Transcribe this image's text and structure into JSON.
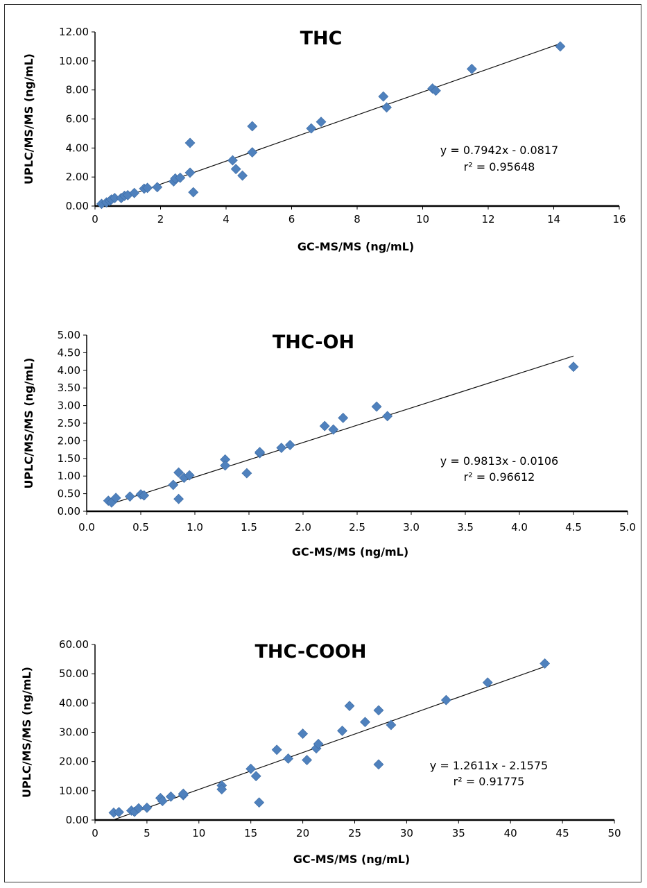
{
  "chart_data": [
    {
      "type": "scatter",
      "title": "THC",
      "xlabel": "GC-MS/MS (ng/mL)",
      "ylabel": "UPLC/MS/MS (ng/mL)",
      "xlim": [
        0,
        16
      ],
      "ylim": [
        0,
        12
      ],
      "x_ticks": [
        "0",
        "2",
        "4",
        "6",
        "8",
        "10",
        "12",
        "14",
        "16"
      ],
      "y_ticks": [
        "0.00",
        "2.00",
        "4.00",
        "6.00",
        "8.00",
        "10.00",
        "12.00"
      ],
      "equation": "y = 0.7942x - 0.0817",
      "r2": "r² = 0.95648",
      "trendline": {
        "slope": 0.7942,
        "intercept": -0.0817,
        "x_range": [
          0.1,
          14.2
        ]
      },
      "marker_color": "#4F81BD",
      "points": [
        [
          0.2,
          0.15
        ],
        [
          0.35,
          0.25
        ],
        [
          0.45,
          0.35
        ],
        [
          0.5,
          0.45
        ],
        [
          0.6,
          0.55
        ],
        [
          0.8,
          0.55
        ],
        [
          0.9,
          0.7
        ],
        [
          1.0,
          0.75
        ],
        [
          1.2,
          0.9
        ],
        [
          1.5,
          1.2
        ],
        [
          1.6,
          1.25
        ],
        [
          1.9,
          1.3
        ],
        [
          2.4,
          1.7
        ],
        [
          2.45,
          1.9
        ],
        [
          2.6,
          1.95
        ],
        [
          2.9,
          2.3
        ],
        [
          2.9,
          4.35
        ],
        [
          3.0,
          0.95
        ],
        [
          4.2,
          3.15
        ],
        [
          4.3,
          2.55
        ],
        [
          4.5,
          2.1
        ],
        [
          4.8,
          5.5
        ],
        [
          4.8,
          3.7
        ],
        [
          6.6,
          5.35
        ],
        [
          6.9,
          5.8
        ],
        [
          8.8,
          7.55
        ],
        [
          8.9,
          6.8
        ],
        [
          10.3,
          8.1
        ],
        [
          10.4,
          7.95
        ],
        [
          11.5,
          9.45
        ],
        [
          14.2,
          11.0
        ]
      ]
    },
    {
      "type": "scatter",
      "title": "THC-OH",
      "xlabel": "GC-MS/MS (ng/mL)",
      "ylabel": "UPLC/MS/MS (ng/mL)",
      "xlim": [
        0,
        5
      ],
      "ylim": [
        0,
        5
      ],
      "x_ticks": [
        "0.0",
        "0.5",
        "1.0",
        "1.5",
        "2.0",
        "2.5",
        "3.0",
        "3.5",
        "4.0",
        "4.5",
        "5.0"
      ],
      "y_ticks": [
        "0.00",
        "0.50",
        "1.00",
        "1.50",
        "2.00",
        "2.50",
        "3.00",
        "3.50",
        "4.00",
        "4.50",
        "5.00"
      ],
      "equation": "y = 0.9813x - 0.0106",
      "r2": "r² = 0.96612",
      "trendline": {
        "slope": 0.9813,
        "intercept": -0.0106,
        "x_range": [
          0.2,
          4.5
        ]
      },
      "marker_color": "#4F81BD",
      "points": [
        [
          0.2,
          0.3
        ],
        [
          0.23,
          0.25
        ],
        [
          0.27,
          0.38
        ],
        [
          0.4,
          0.42
        ],
        [
          0.5,
          0.48
        ],
        [
          0.53,
          0.45
        ],
        [
          0.8,
          0.75
        ],
        [
          0.85,
          1.1
        ],
        [
          0.85,
          0.35
        ],
        [
          0.9,
          0.95
        ],
        [
          0.95,
          1.02
        ],
        [
          1.28,
          1.47
        ],
        [
          1.28,
          1.3
        ],
        [
          1.48,
          1.08
        ],
        [
          1.6,
          1.65
        ],
        [
          1.6,
          1.68
        ],
        [
          1.8,
          1.8
        ],
        [
          1.88,
          1.88
        ],
        [
          2.2,
          2.42
        ],
        [
          2.28,
          2.32
        ],
        [
          2.37,
          2.65
        ],
        [
          2.68,
          2.97
        ],
        [
          2.78,
          2.7
        ],
        [
          4.5,
          4.1
        ]
      ]
    },
    {
      "type": "scatter",
      "title": "THC-COOH",
      "xlabel": "GC-MS/MS (ng/mL)",
      "ylabel": "UPLC/MS/MS (ng/mL)",
      "xlim": [
        0,
        50
      ],
      "ylim": [
        0,
        60
      ],
      "x_ticks": [
        "0",
        "5",
        "10",
        "15",
        "20",
        "25",
        "30",
        "35",
        "40",
        "45",
        "50"
      ],
      "y_ticks": [
        "0.00",
        "10.00",
        "20.00",
        "30.00",
        "40.00",
        "50.00",
        "60.00"
      ],
      "equation": "y = 1.2611x - 2.1575",
      "r2": "r² = 0.91775",
      "trendline": {
        "slope": 1.2611,
        "intercept": -2.1575,
        "x_range": [
          1.8,
          43.3
        ]
      },
      "marker_color": "#4F81BD",
      "points": [
        [
          1.8,
          2.5
        ],
        [
          2.3,
          2.7
        ],
        [
          3.5,
          3.2
        ],
        [
          3.8,
          2.8
        ],
        [
          4.2,
          4.0
        ],
        [
          5.0,
          4.2
        ],
        [
          6.3,
          7.5
        ],
        [
          6.5,
          6.5
        ],
        [
          7.3,
          8.0
        ],
        [
          8.5,
          8.5
        ],
        [
          8.5,
          9.0
        ],
        [
          12.2,
          11.8
        ],
        [
          12.2,
          10.5
        ],
        [
          15.0,
          17.5
        ],
        [
          15.5,
          15.0
        ],
        [
          15.8,
          6.0
        ],
        [
          17.5,
          24.0
        ],
        [
          18.6,
          21.0
        ],
        [
          20.0,
          29.5
        ],
        [
          20.4,
          20.5
        ],
        [
          21.3,
          24.5
        ],
        [
          21.5,
          26.0
        ],
        [
          23.8,
          30.5
        ],
        [
          24.5,
          39.0
        ],
        [
          26.0,
          33.5
        ],
        [
          27.3,
          37.5
        ],
        [
          27.3,
          19.0
        ],
        [
          28.5,
          32.5
        ],
        [
          33.8,
          41.0
        ],
        [
          37.8,
          47.0
        ],
        [
          43.3,
          53.5
        ]
      ]
    }
  ]
}
